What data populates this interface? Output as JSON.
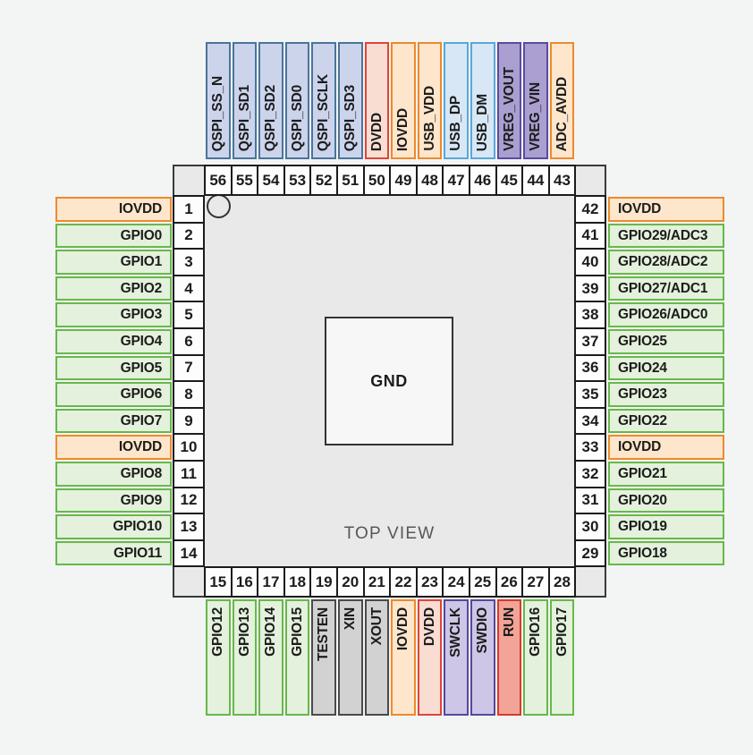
{
  "diagram": {
    "view_label": "TOP VIEW",
    "center_pad_label": "GND",
    "colors": {
      "background": "#f3f4f4",
      "chip_fill": "#e9e9e9",
      "outline": "#3a3a3a",
      "pin_number_fill": "#fdfdfd",
      "pin_types": {
        "gpio": {
          "fill": "#e4f1dc",
          "border": "#67b84b"
        },
        "iovdd": {
          "fill": "#fde6cb",
          "border": "#ed8a2d"
        },
        "qspi": {
          "fill": "#ccd4ec",
          "border": "#49759a"
        },
        "dvdd": {
          "fill": "#f9ddd3",
          "border": "#e04537"
        },
        "usb": {
          "fill": "#d7e7f6",
          "border": "#5aa7d8"
        },
        "vreg": {
          "fill": "#aa9fd0",
          "border": "#5a4c9e"
        },
        "test": {
          "fill": "#d2d2d2",
          "border": "#4a4a4a"
        },
        "swd": {
          "fill": "#cdc6e7",
          "border": "#56489b"
        },
        "run": {
          "fill": "#f1a497",
          "border": "#d63a2a"
        }
      }
    },
    "pins": {
      "top": [
        {
          "num": 56,
          "label": "QSPI_SS_N",
          "type": "qspi"
        },
        {
          "num": 55,
          "label": "QSPI_SD1",
          "type": "qspi"
        },
        {
          "num": 54,
          "label": "QSPI_SD2",
          "type": "qspi"
        },
        {
          "num": 53,
          "label": "QSPI_SD0",
          "type": "qspi"
        },
        {
          "num": 52,
          "label": "QSPI_SCLK",
          "type": "qspi"
        },
        {
          "num": 51,
          "label": "QSPI_SD3",
          "type": "qspi"
        },
        {
          "num": 50,
          "label": "DVDD",
          "type": "dvdd"
        },
        {
          "num": 49,
          "label": "IOVDD",
          "type": "iovdd"
        },
        {
          "num": 48,
          "label": "USB_VDD",
          "type": "iovdd"
        },
        {
          "num": 47,
          "label": "USB_DP",
          "type": "usb"
        },
        {
          "num": 46,
          "label": "USB_DM",
          "type": "usb"
        },
        {
          "num": 45,
          "label": "VREG_VOUT",
          "type": "vreg"
        },
        {
          "num": 44,
          "label": "VREG_VIN",
          "type": "vreg"
        },
        {
          "num": 43,
          "label": "ADC_AVDD",
          "type": "iovdd"
        }
      ],
      "left": [
        {
          "num": 1,
          "label": "IOVDD",
          "type": "iovdd"
        },
        {
          "num": 2,
          "label": "GPIO0",
          "type": "gpio"
        },
        {
          "num": 3,
          "label": "GPIO1",
          "type": "gpio"
        },
        {
          "num": 4,
          "label": "GPIO2",
          "type": "gpio"
        },
        {
          "num": 5,
          "label": "GPIO3",
          "type": "gpio"
        },
        {
          "num": 6,
          "label": "GPIO4",
          "type": "gpio"
        },
        {
          "num": 7,
          "label": "GPIO5",
          "type": "gpio"
        },
        {
          "num": 8,
          "label": "GPIO6",
          "type": "gpio"
        },
        {
          "num": 9,
          "label": "GPIO7",
          "type": "gpio"
        },
        {
          "num": 10,
          "label": "IOVDD",
          "type": "iovdd"
        },
        {
          "num": 11,
          "label": "GPIO8",
          "type": "gpio"
        },
        {
          "num": 12,
          "label": "GPIO9",
          "type": "gpio"
        },
        {
          "num": 13,
          "label": "GPIO10",
          "type": "gpio"
        },
        {
          "num": 14,
          "label": "GPIO11",
          "type": "gpio"
        }
      ],
      "right": [
        {
          "num": 42,
          "label": "IOVDD",
          "type": "iovdd"
        },
        {
          "num": 41,
          "label": "GPIO29/ADC3",
          "type": "gpio"
        },
        {
          "num": 40,
          "label": "GPIO28/ADC2",
          "type": "gpio"
        },
        {
          "num": 39,
          "label": "GPIO27/ADC1",
          "type": "gpio"
        },
        {
          "num": 38,
          "label": "GPIO26/ADC0",
          "type": "gpio"
        },
        {
          "num": 37,
          "label": "GPIO25",
          "type": "gpio"
        },
        {
          "num": 36,
          "label": "GPIO24",
          "type": "gpio"
        },
        {
          "num": 35,
          "label": "GPIO23",
          "type": "gpio"
        },
        {
          "num": 34,
          "label": "GPIO22",
          "type": "gpio"
        },
        {
          "num": 33,
          "label": "IOVDD",
          "type": "iovdd"
        },
        {
          "num": 32,
          "label": "GPIO21",
          "type": "gpio"
        },
        {
          "num": 31,
          "label": "GPIO20",
          "type": "gpio"
        },
        {
          "num": 30,
          "label": "GPIO19",
          "type": "gpio"
        },
        {
          "num": 29,
          "label": "GPIO18",
          "type": "gpio"
        }
      ],
      "bottom": [
        {
          "num": 15,
          "label": "GPIO12",
          "type": "gpio"
        },
        {
          "num": 16,
          "label": "GPIO13",
          "type": "gpio"
        },
        {
          "num": 17,
          "label": "GPIO14",
          "type": "gpio"
        },
        {
          "num": 18,
          "label": "GPIO15",
          "type": "gpio"
        },
        {
          "num": 19,
          "label": "TESTEN",
          "type": "test"
        },
        {
          "num": 20,
          "label": "XIN",
          "type": "test"
        },
        {
          "num": 21,
          "label": "XOUT",
          "type": "test"
        },
        {
          "num": 22,
          "label": "IOVDD",
          "type": "iovdd"
        },
        {
          "num": 23,
          "label": "DVDD",
          "type": "dvdd"
        },
        {
          "num": 24,
          "label": "SWCLK",
          "type": "swd"
        },
        {
          "num": 25,
          "label": "SWDIO",
          "type": "swd"
        },
        {
          "num": 26,
          "label": "RUN",
          "type": "run"
        },
        {
          "num": 27,
          "label": "GPIO16",
          "type": "gpio"
        },
        {
          "num": 28,
          "label": "GPIO17",
          "type": "gpio"
        }
      ]
    }
  }
}
